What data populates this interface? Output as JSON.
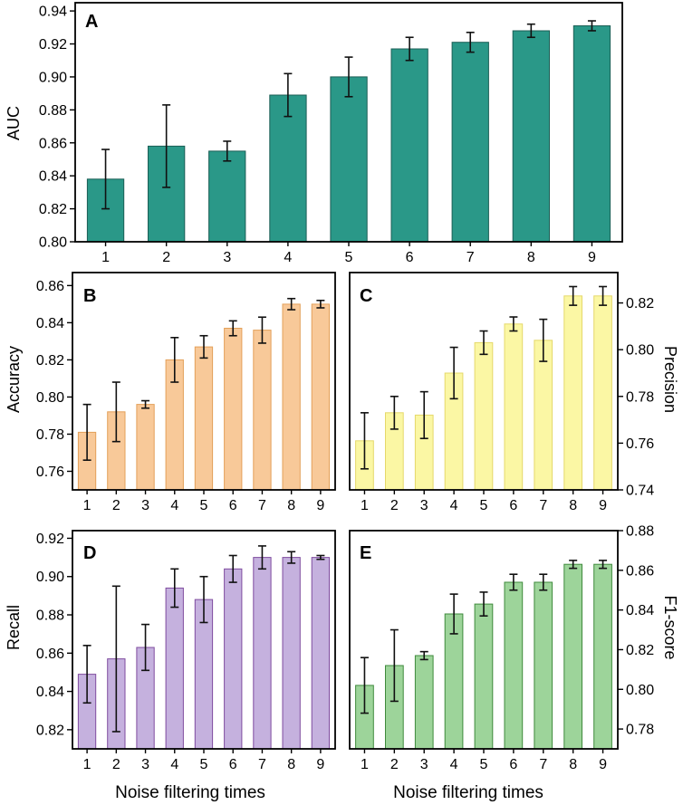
{
  "figure": {
    "xlabel": "Noise filtering times"
  },
  "chart_data": [
    {
      "panel": "A",
      "type": "bar",
      "title": "A",
      "xlabel": "",
      "ylabel": "AUC",
      "y_axis_side": "left",
      "categories": [
        "1",
        "2",
        "3",
        "4",
        "5",
        "6",
        "7",
        "8",
        "9"
      ],
      "values": [
        0.838,
        0.858,
        0.855,
        0.889,
        0.9,
        0.917,
        0.921,
        0.928,
        0.931
      ],
      "errors": [
        0.018,
        0.025,
        0.006,
        0.013,
        0.012,
        0.007,
        0.006,
        0.004,
        0.003
      ],
      "ylim": [
        0.8,
        0.945
      ],
      "yticks": [
        0.8,
        0.82,
        0.84,
        0.86,
        0.88,
        0.9,
        0.92,
        0.94
      ],
      "ytick_labels": [
        "0.80",
        "0.82",
        "0.84",
        "0.86",
        "0.88",
        "0.90",
        "0.92",
        "0.94"
      ],
      "fill": "#2a9888",
      "stroke": "#1b5e55"
    },
    {
      "panel": "B",
      "type": "bar",
      "title": "B",
      "xlabel": "",
      "ylabel": "Accuracy",
      "y_axis_side": "left",
      "categories": [
        "1",
        "2",
        "3",
        "4",
        "5",
        "6",
        "7",
        "8",
        "9"
      ],
      "values": [
        0.781,
        0.792,
        0.796,
        0.82,
        0.827,
        0.837,
        0.836,
        0.85,
        0.85
      ],
      "errors": [
        0.015,
        0.016,
        0.002,
        0.012,
        0.006,
        0.004,
        0.007,
        0.003,
        0.002
      ],
      "ylim": [
        0.75,
        0.867
      ],
      "yticks": [
        0.76,
        0.78,
        0.8,
        0.82,
        0.84,
        0.86
      ],
      "ytick_labels": [
        "0.76",
        "0.78",
        "0.80",
        "0.82",
        "0.84",
        "0.86"
      ],
      "fill": "#f8c999",
      "stroke": "#e3a15a"
    },
    {
      "panel": "C",
      "type": "bar",
      "title": "C",
      "xlabel": "",
      "ylabel": "Precision",
      "y_axis_side": "right",
      "categories": [
        "1",
        "2",
        "3",
        "4",
        "5",
        "6",
        "7",
        "8",
        "9"
      ],
      "values": [
        0.761,
        0.773,
        0.772,
        0.79,
        0.803,
        0.811,
        0.804,
        0.823,
        0.823
      ],
      "errors": [
        0.012,
        0.007,
        0.01,
        0.011,
        0.005,
        0.003,
        0.009,
        0.004,
        0.004
      ],
      "ylim": [
        0.74,
        0.833
      ],
      "yticks": [
        0.74,
        0.76,
        0.78,
        0.8,
        0.82
      ],
      "ytick_labels": [
        "0.74",
        "0.76",
        "0.78",
        "0.80",
        "0.82"
      ],
      "fill": "#fbf7a4",
      "stroke": "#e5d86b"
    },
    {
      "panel": "D",
      "type": "bar",
      "title": "D",
      "xlabel": "Noise filtering times",
      "ylabel": "Recall",
      "y_axis_side": "left",
      "categories": [
        "1",
        "2",
        "3",
        "4",
        "5",
        "6",
        "7",
        "8",
        "9"
      ],
      "values": [
        0.849,
        0.857,
        0.863,
        0.894,
        0.888,
        0.904,
        0.91,
        0.91,
        0.91
      ],
      "errors": [
        0.015,
        0.038,
        0.012,
        0.01,
        0.012,
        0.007,
        0.006,
        0.003,
        0.001
      ],
      "ylim": [
        0.81,
        0.924
      ],
      "yticks": [
        0.82,
        0.84,
        0.86,
        0.88,
        0.9,
        0.92
      ],
      "ytick_labels": [
        "0.82",
        "0.84",
        "0.86",
        "0.88",
        "0.90",
        "0.92"
      ],
      "fill": "#c5b1de",
      "stroke": "#7f4c9f"
    },
    {
      "panel": "E",
      "type": "bar",
      "title": "E",
      "xlabel": "Noise filtering times",
      "ylabel": "F1-score",
      "y_axis_side": "right",
      "categories": [
        "1",
        "2",
        "3",
        "4",
        "5",
        "6",
        "7",
        "8",
        "9"
      ],
      "values": [
        0.802,
        0.812,
        0.817,
        0.838,
        0.843,
        0.854,
        0.854,
        0.863,
        0.863
      ],
      "errors": [
        0.014,
        0.018,
        0.002,
        0.01,
        0.006,
        0.004,
        0.004,
        0.002,
        0.002
      ],
      "ylim": [
        0.77,
        0.88
      ],
      "yticks": [
        0.78,
        0.8,
        0.82,
        0.84,
        0.86,
        0.88
      ],
      "ytick_labels": [
        "0.78",
        "0.80",
        "0.82",
        "0.84",
        "0.86",
        "0.88"
      ],
      "fill": "#9dd49a",
      "stroke": "#3f8a3c"
    }
  ]
}
